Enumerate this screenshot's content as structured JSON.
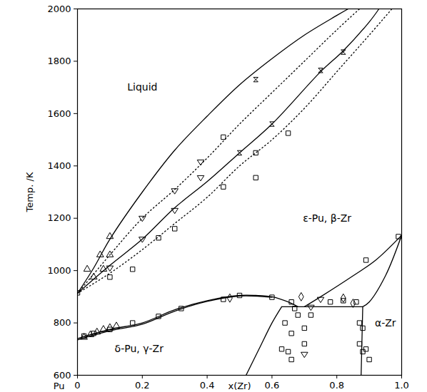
{
  "chart_data": {
    "type": "scatter",
    "x_label": "x(Zr)",
    "y_label": "Temp. /K",
    "x_start_label": "Pu",
    "xlim": [
      0,
      1
    ],
    "ylim": [
      600,
      2000
    ],
    "xticks": [
      0,
      0.2,
      0.4,
      0.6,
      0.8,
      {
        "value": 1,
        "label": "1.0"
      }
    ],
    "yticks": [
      600,
      800,
      1000,
      1200,
      1400,
      1600,
      1800,
      2000
    ],
    "grid": false,
    "annotations": [
      {
        "text": "Liquid",
        "x": 0.2,
        "y": 1700
      },
      {
        "text": "ε-Pu, β-Zr",
        "x": 0.77,
        "y": 1200
      },
      {
        "text": "δ-Pu, γ-Zr",
        "x": 0.19,
        "y": 700
      },
      {
        "text": "α-Zr",
        "x": 0.95,
        "y": 800
      }
    ],
    "series": [
      {
        "type": "line",
        "line_style": "solid",
        "color": "#000000",
        "x": [
          0,
          0.05,
          0.1,
          0.2,
          0.3,
          0.4,
          0.5,
          0.6,
          0.7,
          0.8,
          0.835
        ],
        "values": [
          913,
          1010,
          1120,
          1300,
          1460,
          1590,
          1710,
          1810,
          1900,
          1975,
          2000
        ]
      },
      {
        "type": "line",
        "line_style": "solid",
        "color": "#000000",
        "x": [
          0,
          0.1,
          0.2,
          0.3,
          0.4,
          0.5,
          0.6,
          0.75,
          0.82,
          0.9,
          0.93
        ],
        "values": [
          913,
          1020,
          1120,
          1240,
          1340,
          1450,
          1560,
          1760,
          1840,
          1950,
          2000
        ]
      },
      {
        "type": "line",
        "line_style": "dotted",
        "color": "#000000",
        "x": [
          0,
          0.1,
          0.2,
          0.3,
          0.4,
          0.5,
          0.6,
          0.7,
          0.8,
          0.87
        ],
        "values": [
          913,
          1060,
          1200,
          1310,
          1430,
          1560,
          1680,
          1800,
          1920,
          2000
        ]
      },
      {
        "type": "line",
        "line_style": "dotted",
        "color": "#000000",
        "x": [
          0,
          0.1,
          0.2,
          0.3,
          0.4,
          0.5,
          0.6,
          0.7,
          0.8,
          0.9,
          0.97
        ],
        "values": [
          913,
          990,
          1080,
          1180,
          1280,
          1400,
          1500,
          1620,
          1760,
          1900,
          2000
        ]
      },
      {
        "type": "line",
        "line_style": "solid",
        "color": "#000000",
        "x": [
          0,
          0.1,
          0.2,
          0.3,
          0.4,
          0.5,
          0.55,
          0.6,
          0.65,
          0.68
        ],
        "values": [
          740,
          775,
          800,
          850,
          885,
          905,
          905,
          900,
          880,
          862
        ]
      },
      {
        "type": "line",
        "line_style": "solid",
        "color": "#000000",
        "x": [
          0,
          0.1,
          0.2,
          0.3,
          0.4,
          0.5,
          0.6
        ],
        "values": [
          735,
          770,
          795,
          845,
          882,
          903,
          898
        ]
      },
      {
        "type": "line",
        "line_style": "solid",
        "color": "#000000",
        "x": [
          0.63,
          0.88
        ],
        "values": [
          862,
          862
        ]
      },
      {
        "type": "line",
        "line_style": "solid",
        "color": "#000000",
        "x": [
          0.52,
          0.56,
          0.6,
          0.63
        ],
        "values": [
          600,
          700,
          800,
          862
        ]
      },
      {
        "type": "line",
        "line_style": "solid",
        "color": "#000000",
        "x": [
          0.875,
          0.88
        ],
        "values": [
          600,
          862
        ]
      },
      {
        "type": "line",
        "line_style": "solid",
        "color": "#000000",
        "x": [
          0.7,
          0.75,
          0.85,
          0.92,
          1
        ],
        "values": [
          862,
          900,
          980,
          1040,
          1135
        ]
      },
      {
        "type": "line",
        "line_style": "solid",
        "color": "#000000",
        "x": [
          0.88,
          0.9,
          0.95,
          1
        ],
        "values": [
          862,
          880,
          980,
          1135
        ]
      },
      {
        "type": "scatter",
        "marker": "triangle",
        "color": "#000000",
        "x": [
          0.03,
          0.07,
          0.1,
          0.05,
          0.08,
          0.1,
          0.02,
          0.04,
          0.06,
          0.08,
          0.1,
          0.12
        ],
        "values": [
          1005,
          1060,
          1130,
          975,
          1005,
          1060,
          745,
          755,
          765,
          775,
          782,
          788
        ]
      },
      {
        "type": "scatter",
        "marker": "triangle-down",
        "color": "#000000",
        "x": [
          0.2,
          0.2,
          0.3,
          0.3,
          0.38,
          0.38,
          0.1,
          0.72,
          0.75,
          0.7
        ],
        "values": [
          1200,
          1120,
          1305,
          1230,
          1415,
          1355,
          1010,
          860,
          890,
          680
        ]
      },
      {
        "type": "scatter",
        "marker": "square",
        "color": "#000000",
        "x": [
          0,
          0.1,
          0.17,
          0.25,
          0.3,
          0.45,
          0.45,
          0.55,
          0.55,
          0.65,
          0.02,
          0.05,
          0.1,
          0.17,
          0.25,
          0.32,
          0.45,
          0.5,
          0.6,
          0.66,
          0.67,
          0.64,
          0.66,
          0.68,
          0.7,
          0.63,
          0.65,
          0.66,
          0.7,
          0.72,
          0.78,
          0.82,
          0.86,
          0.87,
          0.88,
          0.87,
          0.88,
          0.89,
          0.9,
          0.89,
          0.99
        ],
        "values": [
          915,
          975,
          1005,
          1125,
          1160,
          1510,
          1320,
          1355,
          1450,
          1525,
          750,
          760,
          775,
          800,
          825,
          855,
          890,
          905,
          898,
          880,
          855,
          800,
          760,
          830,
          780,
          700,
          690,
          660,
          720,
          830,
          880,
          885,
          880,
          800,
          780,
          720,
          690,
          700,
          660,
          1040,
          1130
        ]
      },
      {
        "type": "scatter",
        "marker": "diamond",
        "color": "#000000",
        "x": [
          0.47,
          0.69,
          0.82,
          0.85
        ],
        "values": [
          895,
          900,
          895,
          875
        ]
      },
      {
        "type": "scatter",
        "marker": "hourglass",
        "color": "#000000",
        "x": [
          0.5,
          0.6,
          0.55,
          0.75,
          0.82
        ],
        "values": [
          1450,
          1560,
          1730,
          1765,
          1835
        ]
      }
    ]
  }
}
